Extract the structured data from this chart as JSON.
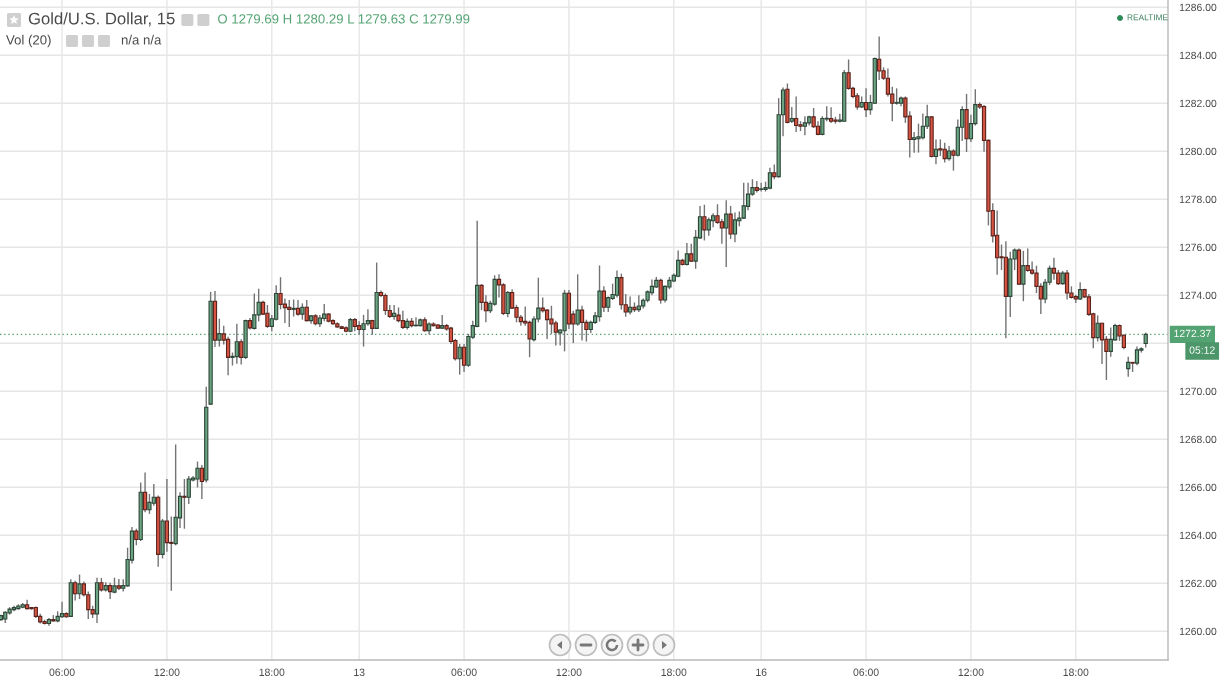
{
  "chart_data": {
    "type": "candlestick",
    "title": "Gold/U.S. Dollar, 15",
    "categories": [
      null,
      null,
      null,
      null,
      null,
      null,
      null,
      null,
      null,
      null,
      null,
      null,
      null,
      null,
      "06:00",
      null,
      null,
      null,
      null,
      null,
      null,
      null,
      null,
      null,
      null,
      null,
      null,
      null,
      null,
      null,
      null,
      null,
      null,
      null,
      null,
      null,
      null,
      null,
      "12:00",
      null,
      null,
      null,
      null,
      null,
      null,
      null,
      null,
      null,
      null,
      null,
      null,
      null,
      null,
      null,
      null,
      null,
      null,
      null,
      null,
      null,
      null,
      null,
      "18:00",
      null,
      null,
      null,
      null,
      null,
      null,
      null,
      null,
      null,
      null,
      null,
      null,
      null,
      null,
      null,
      null,
      null,
      null,
      null,
      "13",
      null,
      null,
      null,
      null,
      null,
      null,
      null,
      null,
      null,
      null,
      null,
      null,
      null,
      null,
      null,
      null,
      null,
      null,
      null,
      null,
      null,
      null,
      null,
      "06:00",
      null,
      null,
      null,
      null,
      null,
      null,
      null,
      null,
      null,
      null,
      null,
      null,
      null,
      null,
      null,
      null,
      null,
      null,
      null,
      null,
      null,
      null,
      null,
      "12:00",
      null,
      null,
      null,
      null,
      null,
      null,
      null,
      null,
      null,
      null,
      null,
      null,
      null,
      null,
      null,
      null,
      null,
      null,
      null,
      null,
      null,
      null,
      null,
      "18:00",
      null,
      null,
      null,
      null,
      null,
      null,
      null,
      null,
      null,
      null,
      null,
      null,
      null,
      null,
      null,
      null,
      null,
      null,
      null,
      "16",
      null,
      null,
      null,
      null,
      null,
      null,
      null,
      null,
      null,
      null,
      null,
      null,
      null,
      null,
      null,
      null,
      null,
      null,
      null,
      null,
      null,
      null,
      null,
      "06:00",
      null,
      null,
      null,
      null,
      null,
      null,
      null,
      null,
      null,
      null,
      null,
      null,
      null,
      null,
      null,
      null,
      null,
      null,
      null,
      null,
      null,
      null,
      null,
      "12:00",
      null,
      null,
      null,
      null,
      null,
      null,
      null,
      null,
      null,
      null,
      null,
      null,
      null,
      null,
      null,
      null,
      null,
      null,
      null,
      null,
      null,
      null,
      null,
      "18:00",
      null,
      null,
      null,
      null,
      null,
      null,
      null,
      null,
      null,
      null,
      null,
      null,
      null,
      null,
      null,
      null
    ],
    "ohlc": [
      [
        1260.48,
        1260.69,
        1260.44,
        1260.65
      ],
      [
        1260.51,
        1260.83,
        1260.34,
        1260.79
      ],
      [
        1260.76,
        1261.0,
        1260.69,
        1260.92
      ],
      [
        1260.9,
        1261.06,
        1260.83,
        1260.98
      ],
      [
        1260.94,
        1261.12,
        1260.9,
        1261.05
      ],
      [
        1261.0,
        1261.17,
        1260.96,
        1261.1
      ],
      [
        1261.1,
        1261.31,
        1260.9,
        1260.94
      ],
      [
        1260.99,
        1261.0,
        1260.9,
        1260.94
      ],
      [
        1260.99,
        1261.03,
        1260.55,
        1260.62
      ],
      [
        1260.62,
        1260.73,
        1260.32,
        1260.39
      ],
      [
        1260.4,
        1260.48,
        1260.28,
        1260.32
      ],
      [
        1260.32,
        1260.55,
        1260.23,
        1260.48
      ],
      [
        1260.48,
        1260.67,
        1260.41,
        1260.43
      ],
      [
        1260.43,
        1260.83,
        1260.37,
        1260.62
      ],
      [
        1260.6,
        1261.23,
        1260.55,
        1260.73
      ],
      [
        1260.73,
        1260.79,
        1260.56,
        1260.6
      ],
      [
        1260.62,
        1262.16,
        1260.59,
        1262.02
      ],
      [
        1262.02,
        1262.1,
        1261.28,
        1261.56
      ],
      [
        1261.56,
        1262.36,
        1261.34,
        1261.97
      ],
      [
        1261.97,
        1262.07,
        1261.45,
        1261.52
      ],
      [
        1261.52,
        1261.65,
        1260.51,
        1260.9
      ],
      [
        1260.9,
        1261.06,
        1260.55,
        1260.72
      ],
      [
        1260.72,
        1262.23,
        1260.34,
        1262.02
      ],
      [
        1262.02,
        1262.22,
        1261.65,
        1261.72
      ],
      [
        1261.72,
        1262.04,
        1261.65,
        1261.9
      ],
      [
        1261.9,
        1262.02,
        1261.34,
        1261.65
      ],
      [
        1261.63,
        1262.23,
        1261.58,
        1261.89
      ],
      [
        1261.89,
        1262.18,
        1261.72,
        1261.79
      ],
      [
        1261.79,
        1262.16,
        1261.65,
        1261.9
      ],
      [
        1261.89,
        1263.48,
        1261.86,
        1262.99
      ],
      [
        1262.96,
        1264.34,
        1262.82,
        1264.17
      ],
      [
        1264.17,
        1264.27,
        1263.58,
        1263.82
      ],
      [
        1263.82,
        1266.2,
        1263.76,
        1265.79
      ],
      [
        1265.79,
        1266.61,
        1264.96,
        1265.06
      ],
      [
        1265.06,
        1265.72,
        1264.89,
        1265.37
      ],
      [
        1265.33,
        1266.13,
        1265.23,
        1265.58
      ],
      [
        1265.58,
        1265.65,
        1262.69,
        1263.2
      ],
      [
        1263.2,
        1264.68,
        1263.03,
        1264.59
      ],
      [
        1264.59,
        1266.34,
        1263.31,
        1263.69
      ],
      [
        1263.7,
        1264.78,
        1261.69,
        1263.66
      ],
      [
        1263.65,
        1267.78,
        1263.58,
        1264.75
      ],
      [
        1264.72,
        1265.79,
        1264.3,
        1265.62
      ],
      [
        1265.62,
        1266.34,
        1264.27,
        1265.58
      ],
      [
        1265.58,
        1266.47,
        1265.3,
        1266.34
      ],
      [
        1266.3,
        1266.47,
        1266.24,
        1266.38
      ],
      [
        1266.34,
        1267.07,
        1265.99,
        1266.79
      ],
      [
        1266.79,
        1266.93,
        1265.51,
        1266.24
      ],
      [
        1266.3,
        1270.19,
        1266.2,
        1269.33
      ],
      [
        1269.46,
        1274.14,
        1269.43,
        1273.75
      ],
      [
        1273.75,
        1274.18,
        1271.84,
        1272.13
      ],
      [
        1272.13,
        1273.02,
        1271.86,
        1272.4
      ],
      [
        1272.39,
        1272.73,
        1271.95,
        1272.13
      ],
      [
        1272.16,
        1272.27,
        1270.66,
        1271.41
      ],
      [
        1271.41,
        1271.61,
        1271.07,
        1271.45
      ],
      [
        1271.44,
        1272.81,
        1271.14,
        1272.06
      ],
      [
        1272.06,
        1272.16,
        1271.11,
        1271.41
      ],
      [
        1271.41,
        1272.98,
        1271.34,
        1272.94
      ],
      [
        1272.94,
        1273.05,
        1272.57,
        1272.64
      ],
      [
        1272.62,
        1274.07,
        1272.57,
        1273.18
      ],
      [
        1273.18,
        1274.27,
        1272.91,
        1273.7
      ],
      [
        1273.7,
        1273.77,
        1273.17,
        1273.21
      ],
      [
        1273.25,
        1273.59,
        1272.64,
        1272.7
      ],
      [
        1272.7,
        1273.18,
        1272.5,
        1273.02
      ],
      [
        1273.0,
        1274.41,
        1272.95,
        1274.07
      ],
      [
        1274.07,
        1274.75,
        1273.41,
        1273.62
      ],
      [
        1273.63,
        1273.86,
        1272.84,
        1273.48
      ],
      [
        1273.5,
        1273.8,
        1272.68,
        1273.41
      ],
      [
        1273.41,
        1273.82,
        1273.11,
        1273.45
      ],
      [
        1273.45,
        1273.8,
        1273.14,
        1273.21
      ],
      [
        1273.21,
        1273.66,
        1272.98,
        1273.5
      ],
      [
        1273.5,
        1273.8,
        1272.9,
        1272.94
      ],
      [
        1272.94,
        1273.18,
        1272.81,
        1273.14
      ],
      [
        1273.14,
        1273.21,
        1272.74,
        1272.81
      ],
      [
        1272.81,
        1273.18,
        1272.68,
        1273.05
      ],
      [
        1273.03,
        1273.63,
        1272.91,
        1273.21
      ],
      [
        1273.21,
        1273.25,
        1272.87,
        1272.92
      ],
      [
        1272.94,
        1273.0,
        1272.76,
        1272.81
      ],
      [
        1272.81,
        1272.87,
        1272.64,
        1272.68
      ],
      [
        1272.68,
        1272.73,
        1272.59,
        1272.62
      ],
      [
        1272.64,
        1272.71,
        1272.46,
        1272.5
      ],
      [
        1272.5,
        1273.05,
        1272.46,
        1272.98
      ],
      [
        1272.98,
        1273.05,
        1272.5,
        1272.7
      ],
      [
        1272.73,
        1272.91,
        1272.36,
        1272.57
      ],
      [
        1272.57,
        1273.18,
        1271.86,
        1272.81
      ],
      [
        1272.81,
        1273.41,
        1272.73,
        1272.94
      ],
      [
        1272.94,
        1272.98,
        1272.35,
        1272.62
      ],
      [
        1272.62,
        1275.36,
        1272.59,
        1274.11
      ],
      [
        1274.11,
        1274.2,
        1273.93,
        1273.99
      ],
      [
        1273.99,
        1274.07,
        1273.18,
        1273.36
      ],
      [
        1273.36,
        1273.59,
        1273.05,
        1273.11
      ],
      [
        1273.11,
        1273.59,
        1272.98,
        1273.25
      ],
      [
        1273.17,
        1273.49,
        1272.87,
        1272.94
      ],
      [
        1272.94,
        1273.35,
        1272.59,
        1272.66
      ],
      [
        1272.66,
        1273.03,
        1272.57,
        1272.91
      ],
      [
        1272.91,
        1273.05,
        1272.66,
        1272.73
      ],
      [
        1272.73,
        1273.08,
        1272.7,
        1272.75
      ],
      [
        1272.73,
        1273.03,
        1272.7,
        1272.97
      ],
      [
        1272.97,
        1273.08,
        1272.48,
        1272.52
      ],
      [
        1272.52,
        1272.87,
        1272.36,
        1272.8
      ],
      [
        1272.8,
        1272.87,
        1272.7,
        1272.73
      ],
      [
        1272.76,
        1272.8,
        1272.59,
        1272.63
      ],
      [
        1272.63,
        1273.17,
        1272.59,
        1272.73
      ],
      [
        1272.73,
        1272.8,
        1272.52,
        1272.59
      ],
      [
        1272.63,
        1272.69,
        1271.97,
        1272.07
      ],
      [
        1272.11,
        1272.18,
        1271.28,
        1271.35
      ],
      [
        1271.35,
        1271.97,
        1270.69,
        1271.83
      ],
      [
        1271.83,
        1271.97,
        1270.8,
        1271.08
      ],
      [
        1271.08,
        1272.39,
        1271.01,
        1272.28
      ],
      [
        1272.25,
        1272.94,
        1272.18,
        1272.73
      ],
      [
        1272.7,
        1277.1,
        1272.66,
        1274.41
      ],
      [
        1274.41,
        1274.46,
        1273.38,
        1273.7
      ],
      [
        1273.7,
        1274.0,
        1272.87,
        1273.35
      ],
      [
        1273.35,
        1273.77,
        1273.26,
        1273.66
      ],
      [
        1273.63,
        1274.83,
        1273.56,
        1274.66
      ],
      [
        1274.66,
        1274.87,
        1273.9,
        1274.43
      ],
      [
        1274.43,
        1274.5,
        1273.17,
        1273.24
      ],
      [
        1273.24,
        1274.18,
        1273.08,
        1274.11
      ],
      [
        1274.11,
        1274.25,
        1273.42,
        1273.46
      ],
      [
        1273.49,
        1273.6,
        1272.87,
        1273.08
      ],
      [
        1273.08,
        1273.17,
        1272.73,
        1272.9
      ],
      [
        1272.91,
        1273.53,
        1272.73,
        1272.84
      ],
      [
        1272.87,
        1272.94,
        1271.42,
        1272.18
      ],
      [
        1272.15,
        1273.12,
        1272.07,
        1273.01
      ],
      [
        1273.01,
        1274.73,
        1272.87,
        1273.46
      ],
      [
        1273.46,
        1273.9,
        1273.28,
        1273.35
      ],
      [
        1273.38,
        1273.42,
        1272.18,
        1272.98
      ],
      [
        1273.01,
        1273.56,
        1272.39,
        1272.8
      ],
      [
        1272.84,
        1272.94,
        1271.9,
        1272.46
      ],
      [
        1272.43,
        1272.59,
        1271.9,
        1272.55
      ],
      [
        1272.52,
        1274.22,
        1271.66,
        1274.08
      ],
      [
        1274.08,
        1274.22,
        1272.59,
        1272.8
      ],
      [
        1273.21,
        1273.35,
        1272.01,
        1272.8
      ],
      [
        1272.8,
        1274.87,
        1272.73,
        1273.38
      ],
      [
        1273.38,
        1273.56,
        1272.11,
        1272.87
      ],
      [
        1272.87,
        1272.98,
        1272.07,
        1272.57
      ],
      [
        1272.57,
        1272.94,
        1272.43,
        1272.87
      ],
      [
        1272.87,
        1273.3,
        1272.8,
        1273.14
      ],
      [
        1273.1,
        1275.24,
        1272.9,
        1274.17
      ],
      [
        1274.17,
        1274.37,
        1273.3,
        1273.5
      ],
      [
        1273.5,
        1273.95,
        1273.3,
        1273.9
      ],
      [
        1273.86,
        1274.48,
        1273.8,
        1274.03
      ],
      [
        1274.0,
        1275.03,
        1273.9,
        1274.73
      ],
      [
        1274.73,
        1274.9,
        1273.4,
        1273.6
      ],
      [
        1273.6,
        1274.05,
        1273.1,
        1273.3
      ],
      [
        1273.3,
        1273.95,
        1273.2,
        1273.5
      ],
      [
        1273.5,
        1273.7,
        1273.3,
        1273.4
      ],
      [
        1273.4,
        1274.0,
        1273.3,
        1273.55
      ],
      [
        1273.55,
        1273.86,
        1273.45,
        1273.79
      ],
      [
        1273.79,
        1274.2,
        1273.7,
        1274.14
      ],
      [
        1274.1,
        1274.65,
        1274.0,
        1274.37
      ],
      [
        1274.34,
        1274.76,
        1274.3,
        1274.62
      ],
      [
        1274.62,
        1274.69,
        1273.65,
        1273.8
      ],
      [
        1273.8,
        1274.4,
        1273.7,
        1274.37
      ],
      [
        1274.34,
        1274.76,
        1274.25,
        1274.62
      ],
      [
        1274.59,
        1274.9,
        1274.55,
        1274.83
      ],
      [
        1274.79,
        1275.86,
        1274.75,
        1275.45
      ],
      [
        1275.45,
        1275.52,
        1275.24,
        1275.28
      ],
      [
        1275.28,
        1276.17,
        1275.24,
        1275.72
      ],
      [
        1275.72,
        1276.14,
        1275.38,
        1275.42
      ],
      [
        1275.42,
        1276.72,
        1275.1,
        1276.41
      ],
      [
        1276.39,
        1277.72,
        1276.34,
        1277.27
      ],
      [
        1277.27,
        1277.77,
        1276.28,
        1276.72
      ],
      [
        1276.72,
        1277.24,
        1276.48,
        1277.14
      ],
      [
        1277.1,
        1277.41,
        1276.83,
        1277.31
      ],
      [
        1277.31,
        1277.79,
        1276.97,
        1277.03
      ],
      [
        1277.06,
        1277.17,
        1276.14,
        1276.8
      ],
      [
        1276.8,
        1277.96,
        1275.17,
        1277.38
      ],
      [
        1277.38,
        1277.72,
        1276.34,
        1276.55
      ],
      [
        1276.55,
        1277.45,
        1276.21,
        1277.14
      ],
      [
        1277.1,
        1277.49,
        1276.87,
        1277.21
      ],
      [
        1277.21,
        1278.69,
        1277.17,
        1277.72
      ],
      [
        1277.7,
        1278.69,
        1277.54,
        1278.21
      ],
      [
        1278.21,
        1278.83,
        1278.14,
        1278.48
      ],
      [
        1278.48,
        1278.76,
        1278.28,
        1278.37
      ],
      [
        1278.41,
        1278.69,
        1278.32,
        1278.43
      ],
      [
        1278.41,
        1278.73,
        1278.32,
        1278.48
      ],
      [
        1278.46,
        1279.31,
        1278.41,
        1279.1
      ],
      [
        1279.1,
        1279.45,
        1278.83,
        1278.94
      ],
      [
        1278.94,
        1282.21,
        1278.9,
        1281.52
      ],
      [
        1281.52,
        1282.65,
        1280.62,
        1282.55
      ],
      [
        1282.58,
        1282.82,
        1281.16,
        1281.2
      ],
      [
        1281.25,
        1281.84,
        1281.18,
        1281.36
      ],
      [
        1281.36,
        1282.28,
        1280.8,
        1281.07
      ],
      [
        1281.1,
        1281.25,
        1280.84,
        1281.04
      ],
      [
        1281.04,
        1281.46,
        1280.66,
        1281.18
      ],
      [
        1281.18,
        1281.48,
        1281.07,
        1281.43
      ],
      [
        1281.43,
        1281.8,
        1280.97,
        1281.02
      ],
      [
        1281.04,
        1281.25,
        1280.66,
        1280.7
      ],
      [
        1280.7,
        1281.46,
        1280.66,
        1281.36
      ],
      [
        1281.34,
        1281.87,
        1281.25,
        1281.37
      ],
      [
        1281.36,
        1281.83,
        1281.18,
        1281.25
      ],
      [
        1281.3,
        1281.43,
        1281.15,
        1281.25
      ],
      [
        1281.25,
        1281.56,
        1281.2,
        1281.3
      ],
      [
        1281.25,
        1283.38,
        1281.22,
        1283.27
      ],
      [
        1283.27,
        1283.82,
        1282.56,
        1282.62
      ],
      [
        1282.62,
        1282.69,
        1282.21,
        1282.28
      ],
      [
        1282.31,
        1282.42,
        1281.73,
        1281.84
      ],
      [
        1281.84,
        1282.28,
        1281.8,
        1282.03
      ],
      [
        1282.03,
        1282.62,
        1281.43,
        1281.73
      ],
      [
        1281.73,
        1282.35,
        1281.52,
        1282.03
      ],
      [
        1282.0,
        1283.9,
        1281.98,
        1283.86
      ],
      [
        1283.83,
        1284.78,
        1282.97,
        1283.34
      ],
      [
        1283.35,
        1283.49,
        1282.97,
        1283.04
      ],
      [
        1283.04,
        1283.45,
        1282.28,
        1282.38
      ],
      [
        1282.38,
        1282.69,
        1281.25,
        1282.0
      ],
      [
        1282.0,
        1282.62,
        1281.94,
        1282.03
      ],
      [
        1282.0,
        1282.28,
        1281.87,
        1282.21
      ],
      [
        1282.21,
        1282.28,
        1281.18,
        1281.43
      ],
      [
        1281.46,
        1281.66,
        1279.74,
        1280.49
      ],
      [
        1280.49,
        1280.8,
        1279.94,
        1280.56
      ],
      [
        1280.52,
        1281.15,
        1279.94,
        1280.6
      ],
      [
        1280.56,
        1281.57,
        1280.49,
        1281.04
      ],
      [
        1281.04,
        1281.94,
        1280.93,
        1281.43
      ],
      [
        1281.43,
        1281.46,
        1279.74,
        1279.78
      ],
      [
        1279.78,
        1280.49,
        1279.46,
        1280.08
      ],
      [
        1280.1,
        1280.49,
        1279.8,
        1280.05
      ],
      [
        1280.08,
        1280.35,
        1279.53,
        1279.69
      ],
      [
        1279.69,
        1280.22,
        1279.6,
        1280.01
      ],
      [
        1280.01,
        1280.08,
        1279.19,
        1279.83
      ],
      [
        1279.83,
        1281.32,
        1279.78,
        1281.0
      ],
      [
        1281.0,
        1281.87,
        1280.42,
        1281.73
      ],
      [
        1281.73,
        1282.39,
        1279.97,
        1280.52
      ],
      [
        1280.52,
        1281.52,
        1280.38,
        1281.15
      ],
      [
        1281.15,
        1282.58,
        1281.07,
        1281.94
      ],
      [
        1281.94,
        1282.03,
        1281.76,
        1281.84
      ],
      [
        1281.86,
        1281.93,
        1279.98,
        1280.45
      ],
      [
        1280.45,
        1280.49,
        1276.91,
        1277.5
      ],
      [
        1277.53,
        1277.83,
        1276.2,
        1276.47
      ],
      [
        1276.5,
        1277.53,
        1274.85,
        1275.56
      ],
      [
        1275.6,
        1276.11,
        1275.05,
        1275.56
      ],
      [
        1275.58,
        1276.25,
        1272.21,
        1273.95
      ],
      [
        1273.95,
        1275.81,
        1273.09,
        1275.51
      ],
      [
        1275.51,
        1275.95,
        1275.05,
        1275.88
      ],
      [
        1275.88,
        1275.95,
        1274.43,
        1274.46
      ],
      [
        1274.46,
        1275.85,
        1273.75,
        1275.23
      ],
      [
        1275.23,
        1275.95,
        1274.98,
        1275.03
      ],
      [
        1275.05,
        1275.4,
        1274.85,
        1274.92
      ],
      [
        1274.92,
        1275.23,
        1274.09,
        1274.37
      ],
      [
        1274.37,
        1274.5,
        1273.22,
        1273.84
      ],
      [
        1273.84,
        1274.68,
        1273.66,
        1274.54
      ],
      [
        1274.54,
        1275.23,
        1274.43,
        1275.12
      ],
      [
        1275.12,
        1275.56,
        1274.64,
        1274.92
      ],
      [
        1274.92,
        1275.05,
        1274.43,
        1274.48
      ],
      [
        1274.48,
        1275.01,
        1274.43,
        1274.92
      ],
      [
        1274.92,
        1275.05,
        1273.82,
        1274.09
      ],
      [
        1274.09,
        1274.37,
        1273.86,
        1273.91
      ],
      [
        1273.94,
        1274.02,
        1273.68,
        1273.84
      ],
      [
        1273.84,
        1274.54,
        1273.8,
        1274.23
      ],
      [
        1274.23,
        1274.27,
        1273.88,
        1273.93
      ],
      [
        1273.93,
        1274.05,
        1273.13,
        1273.2
      ],
      [
        1273.22,
        1273.27,
        1271.79,
        1272.23
      ],
      [
        1272.23,
        1273.16,
        1272.07,
        1272.83
      ],
      [
        1272.83,
        1272.85,
        1271.13,
        1272.14
      ],
      [
        1272.16,
        1272.3,
        1270.47,
        1271.66
      ],
      [
        1271.66,
        1272.65,
        1271.44,
        1272.16
      ],
      [
        1272.14,
        1272.81,
        1272.1,
        1272.74
      ],
      [
        1272.74,
        1272.78,
        1272.1,
        1272.3
      ],
      [
        1272.33,
        1272.37,
        1271.75,
        1271.82
      ],
      [
        1270.94,
        1271.44,
        1270.6,
        1271.2
      ],
      [
        1271.2,
        1271.21,
        1270.8,
        1271.17
      ],
      [
        1271.17,
        1271.86,
        1271.08,
        1271.72
      ],
      [
        1271.71,
        1271.83,
        1271.61,
        1271.77
      ],
      [
        1271.99,
        1272.44,
        1271.82,
        1272.37
      ]
    ],
    "colors": [
      "#6ba583",
      "#6ba583",
      "#6ba583",
      "#6ba583",
      "#6ba583",
      "#6ba583",
      "#d75442",
      "#d75442",
      "#d75442",
      "#d75442",
      "#d75442",
      "#6ba583",
      "#d75442",
      "#6ba583",
      "#6ba583",
      "#d75442",
      "#6ba583",
      "#d75442",
      "#6ba583",
      "#d75442",
      "#d75442",
      "#d75442",
      "#6ba583",
      "#d75442",
      "#6ba583",
      "#d75442",
      "#6ba583",
      "#d75442",
      "#6ba583",
      "#6ba583",
      "#6ba583",
      "#d75442",
      "#6ba583",
      "#d75442",
      "#6ba583",
      "#6ba583",
      "#d75442",
      "#6ba583",
      "#d75442",
      "#d75442",
      "#6ba583",
      "#6ba583",
      "#d75442",
      "#6ba583",
      "#6ba583",
      "#6ba583",
      "#d75442",
      "#6ba583",
      "#6ba583",
      "#d75442",
      "#6ba583",
      "#d75442",
      "#d75442",
      "#6ba583",
      "#6ba583",
      "#d75442",
      "#6ba583",
      "#d75442",
      "#6ba583",
      "#6ba583",
      "#d75442",
      "#d75442",
      "#6ba583",
      "#6ba583",
      "#d75442",
      "#d75442",
      "#d75442",
      "#6ba583",
      "#d75442",
      "#6ba583",
      "#d75442",
      "#6ba583",
      "#d75442",
      "#6ba583",
      "#6ba583",
      "#d75442",
      "#d75442",
      "#d75442",
      "#d75442",
      "#d75442",
      "#6ba583",
      "#d75442",
      "#d75442",
      "#6ba583",
      "#6ba583",
      "#d75442",
      "#6ba583",
      "#d75442",
      "#d75442",
      "#d75442",
      "#6ba583",
      "#d75442",
      "#d75442",
      "#6ba583",
      "#d75442",
      "#6ba583",
      "#6ba583",
      "#d75442",
      "#6ba583",
      "#d75442",
      "#d75442",
      "#6ba583",
      "#d75442",
      "#d75442",
      "#d75442",
      "#6ba583",
      "#d75442",
      "#6ba583",
      "#6ba583",
      "#6ba583",
      "#d75442",
      "#d75442",
      "#6ba583",
      "#6ba583",
      "#d75442",
      "#d75442",
      "#6ba583",
      "#d75442",
      "#d75442",
      "#d75442",
      "#d75442",
      "#d75442",
      "#6ba583",
      "#6ba583",
      "#d75442",
      "#d75442",
      "#d75442",
      "#d75442",
      "#6ba583",
      "#6ba583",
      "#d75442",
      "#d75442",
      "#6ba583",
      "#d75442",
      "#d75442",
      "#6ba583",
      "#6ba583",
      "#6ba583",
      "#d75442",
      "#6ba583",
      "#6ba583",
      "#6ba583",
      "#d75442",
      "#d75442",
      "#6ba583",
      "#d75442",
      "#6ba583",
      "#6ba583",
      "#6ba583",
      "#6ba583",
      "#6ba583",
      "#d75442",
      "#6ba583",
      "#6ba583",
      "#6ba583",
      "#6ba583",
      "#d75442",
      "#6ba583",
      "#d75442",
      "#6ba583",
      "#6ba583",
      "#d75442",
      "#6ba583",
      "#6ba583",
      "#d75442",
      "#d75442",
      "#6ba583",
      "#d75442",
      "#6ba583",
      "#6ba583",
      "#6ba583",
      "#6ba583",
      "#6ba583",
      "#d75442",
      "#6ba583",
      "#6ba583",
      "#6ba583",
      "#d75442",
      "#6ba583",
      "#6ba583",
      "#d75442",
      "#6ba583",
      "#d75442",
      "#d75442",
      "#6ba583",
      "#6ba583",
      "#d75442",
      "#d75442",
      "#6ba583",
      "#6ba583",
      "#d75442",
      "#d75442",
      "#6ba583",
      "#6ba583",
      "#d75442",
      "#d75442",
      "#d75442",
      "#6ba583",
      "#d75442",
      "#6ba583",
      "#6ba583",
      "#d75442",
      "#d75442",
      "#d75442",
      "#d75442",
      "#6ba583",
      "#6ba583",
      "#d75442",
      "#d75442",
      "#6ba583",
      "#6ba583",
      "#6ba583",
      "#6ba583",
      "#d75442",
      "#6ba583",
      "#d75442",
      "#d75442",
      "#6ba583",
      "#d75442",
      "#6ba583",
      "#6ba583",
      "#d75442",
      "#6ba583",
      "#6ba583",
      "#d75442",
      "#d75442",
      "#d75442",
      "#d75442",
      "#d75442",
      "#d75442",
      "#d75442",
      "#6ba583",
      "#6ba583",
      "#d75442",
      "#6ba583",
      "#d75442",
      "#d75442",
      "#d75442",
      "#d75442",
      "#6ba583",
      "#6ba583",
      "#d75442",
      "#d75442",
      "#6ba583",
      "#d75442",
      "#d75442",
      "#d75442",
      "#6ba583",
      "#d75442",
      "#d75442",
      "#d75442",
      "#6ba583",
      "#d75442",
      "#d75442",
      "#6ba583",
      "#6ba583",
      "#d75442",
      "#d75442",
      "#6ba583",
      "#d75442",
      "#6ba583",
      "#6ba583",
      "#6ba583"
    ],
    "ylim": [
      1258.8,
      1286.3
    ],
    "yticks": [
      {
        "value": 1260,
        "label": "1260.00"
      },
      {
        "value": 1262,
        "label": "1262.00"
      },
      {
        "value": 1264,
        "label": "1264.00"
      },
      {
        "value": 1266,
        "label": "1266.00"
      },
      {
        "value": 1268,
        "label": "1268.00"
      },
      {
        "value": 1270,
        "label": "1270.00"
      },
      {
        "value": 1272,
        "label": null
      },
      {
        "value": 1274,
        "label": "1274.00"
      },
      {
        "value": 1276,
        "label": "1276.00"
      },
      {
        "value": 1278,
        "label": "1278.00"
      },
      {
        "value": 1280,
        "label": "1280.00"
      },
      {
        "value": 1282,
        "label": "1282.00"
      },
      {
        "value": 1284,
        "label": "1284.00"
      },
      {
        "value": 1286,
        "label": "1286.00"
      }
    ],
    "grid": true,
    "ref_lines": [
      {
        "axis": "y",
        "value": 1272.37,
        "label": "1272.37",
        "color": "#53a373",
        "line_style": "dotted"
      }
    ],
    "annotations": [
      "O 1279.69 H 1280.29 L 1279.63 C 1279.99",
      "Vol (20)",
      "n/a n/a",
      "REALTIME",
      "05:12"
    ]
  }
}
